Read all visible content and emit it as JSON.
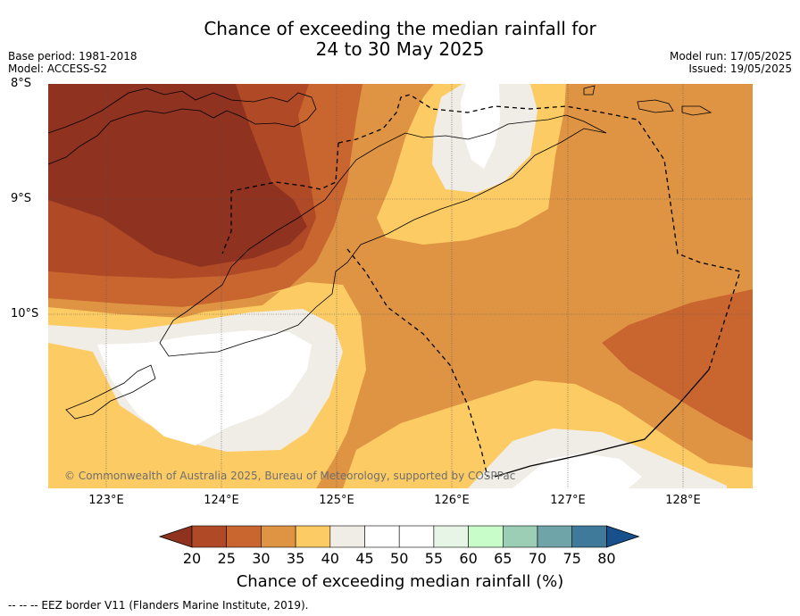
{
  "title_line1": "Chance of exceeding the median rainfall for",
  "title_line2": "24 to 30 May 2025",
  "base_period": "Base period: 1981-2018",
  "model": "Model: ACCESS-S2",
  "model_run": "Model run: 17/05/2025",
  "issued": "Issued: 19/05/2025",
  "lat_labels": [
    "8°S",
    "9°S",
    "10°S"
  ],
  "lon_labels": [
    "123°E",
    "124°E",
    "125°E",
    "126°E",
    "127°E",
    "128°E"
  ],
  "copyright": "© Commonwealth of Australia 2025, Bureau of Meteorology, supported by COSPPac",
  "colorbar": {
    "label": "Chance of exceeding median rainfall (%)",
    "ticks": [
      "20",
      "25",
      "30",
      "35",
      "40",
      "45",
      "50",
      "55",
      "60",
      "65",
      "70",
      "75",
      "80"
    ],
    "colors": [
      "#8f321f",
      "#b04a26",
      "#c96630",
      "#df9444",
      "#fdcb64",
      "#f0ece6",
      "#ffffff",
      "#ffffff",
      "#e6f5e6",
      "#c8fcc8",
      "#9ccdb5",
      "#6fa4a8",
      "#3f7a9b",
      "#17508a"
    ]
  },
  "legend_note": "--  --  -- EEZ border V11 (Flanders Marine Institute, 2019)."
}
